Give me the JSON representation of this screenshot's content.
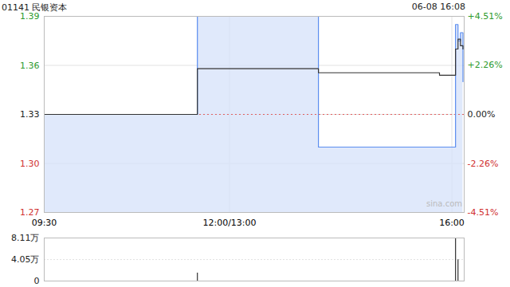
{
  "chart_data": [
    {
      "type": "line",
      "title": "01141 民银资本",
      "subtitle": "06-08 16:08",
      "source": "sina.com",
      "x": [
        0,
        124,
        222,
        320,
        333,
        335,
        337,
        339
      ],
      "series": [
        {
          "color": "#5b8def",
          "values": [
            1.33,
            1.39,
            1.31,
            1.31,
            1.385,
            1.375,
            1.38,
            1.35
          ]
        },
        {
          "color": "#333333",
          "values": [
            1.33,
            1.358,
            1.3555,
            1.354,
            1.37,
            1.376,
            1.372,
            1.37
          ]
        }
      ],
      "xlim": [
        0,
        340
      ],
      "xticks": [
        {
          "value": 0,
          "label": "09:30"
        },
        {
          "value": 150,
          "label": "12:00/13:00"
        },
        {
          "value": 330,
          "label": "16:00"
        }
      ],
      "ylim": [
        1.27,
        1.39
      ],
      "yticks": [
        1.27,
        {
          "value": 1.3,
          "label": "1.30"
        },
        1.33,
        1.36,
        1.39
      ],
      "y2lim": [
        -4.51,
        4.51
      ],
      "y2ticks": [
        {
          "value": -4.51,
          "label": "-4.51%"
        },
        {
          "value": -2.26,
          "label": "-2.26%"
        },
        {
          "value": 0,
          "label": "0.00%"
        },
        {
          "value": 2.26,
          "label": "+2.26%"
        },
        {
          "value": 4.51,
          "label": "+4.51%"
        }
      ],
      "grid": true
    },
    {
      "type": "bar",
      "x": [
        124,
        333,
        335
      ],
      "values": [
        15000,
        81000,
        40000
      ],
      "color": "#333333",
      "xlim": [
        0,
        340
      ],
      "ylim": [
        0,
        81100
      ],
      "yticks": [
        0,
        {
          "value": 40500,
          "label": "4.05万"
        },
        {
          "value": 81100,
          "label": "8.11万"
        }
      ],
      "grid": true,
      "tick_labels": "y"
    }
  ]
}
